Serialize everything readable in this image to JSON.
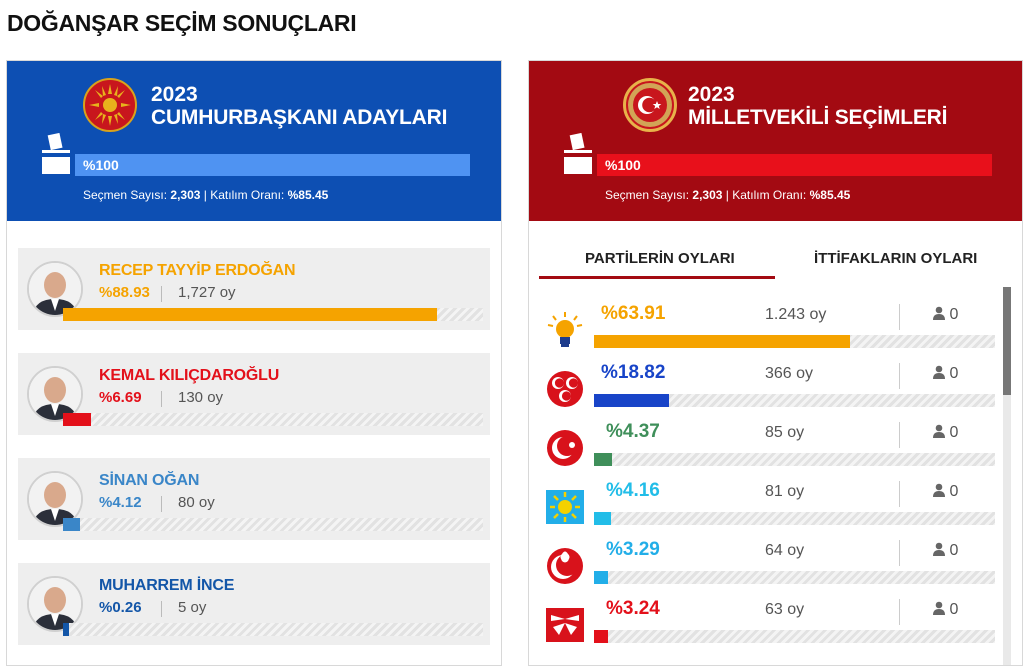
{
  "page_title": "DOĞANŞAR SEÇİM SONUÇLARI",
  "presidential": {
    "year": "2023",
    "title": "CUMHURBAŞKANI ADAYLARI",
    "turnout_label": "%100",
    "turnout_fraction": 1.0,
    "voter_label": "Seçmen Sayısı:",
    "voter_count": "2,303",
    "participation_label": "Katılım Oranı:",
    "participation_rate": "%85.45",
    "candidates": [
      {
        "name": "RECEP TAYYİP ERDOĞAN",
        "pct": "%88.93",
        "votes": "1,727 oy",
        "fraction": 0.8893,
        "color": "#f5a300"
      },
      {
        "name": "KEMAL KILIÇDAROĞLU",
        "pct": "%6.69",
        "votes": "130 oy",
        "fraction": 0.0669,
        "color": "#e3101a"
      },
      {
        "name": "SİNAN OĞAN",
        "pct": "%4.12",
        "votes": "80 oy",
        "fraction": 0.0412,
        "color": "#3a86c8"
      },
      {
        "name": "MUHARREM İNCE",
        "pct": "%0.26",
        "votes": "5 oy",
        "fraction": 0.0026,
        "color": "#1356a8"
      }
    ]
  },
  "parliament": {
    "year": "2023",
    "title": "MİLLETVEKİLİ SEÇİMLERİ",
    "turnout_label": "%100",
    "turnout_fraction": 1.0,
    "voter_label": "Seçmen Sayısı:",
    "voter_count": "2,303",
    "participation_label": "Katılım Oranı:",
    "participation_rate": "%85.45",
    "tabs": [
      "PARTİLERİN OYLARI",
      "İTTİFAKLARIN OYLARI"
    ],
    "parties": [
      {
        "logo": "akp-bulb-icon",
        "pct": "%63.91",
        "votes": "1.243 oy",
        "seats": "0",
        "fraction": 0.6391,
        "color": "#f5a300"
      },
      {
        "logo": "mhp-crescents-icon",
        "pct": "%18.82",
        "votes": "366 oy",
        "seats": "0",
        "fraction": 0.1882,
        "color": "#1844c8"
      },
      {
        "logo": "yrp-crescent-icon",
        "pct": "%4.37",
        "votes": "85 oy",
        "seats": "0",
        "fraction": 0.0437,
        "color": "#3f8f5a"
      },
      {
        "logo": "iyi-sun-icon",
        "pct": "%4.16",
        "votes": "81 oy",
        "seats": "0",
        "fraction": 0.0416,
        "color": "#22bde8"
      },
      {
        "logo": "bbp-tulip-icon",
        "pct": "%3.29",
        "votes": "64 oy",
        "seats": "0",
        "fraction": 0.0329,
        "color": "#22aee8"
      },
      {
        "logo": "chp-arrows-icon",
        "pct": "%3.24",
        "votes": "63 oy",
        "seats": "0",
        "fraction": 0.0324,
        "color": "#e3101a"
      }
    ]
  }
}
